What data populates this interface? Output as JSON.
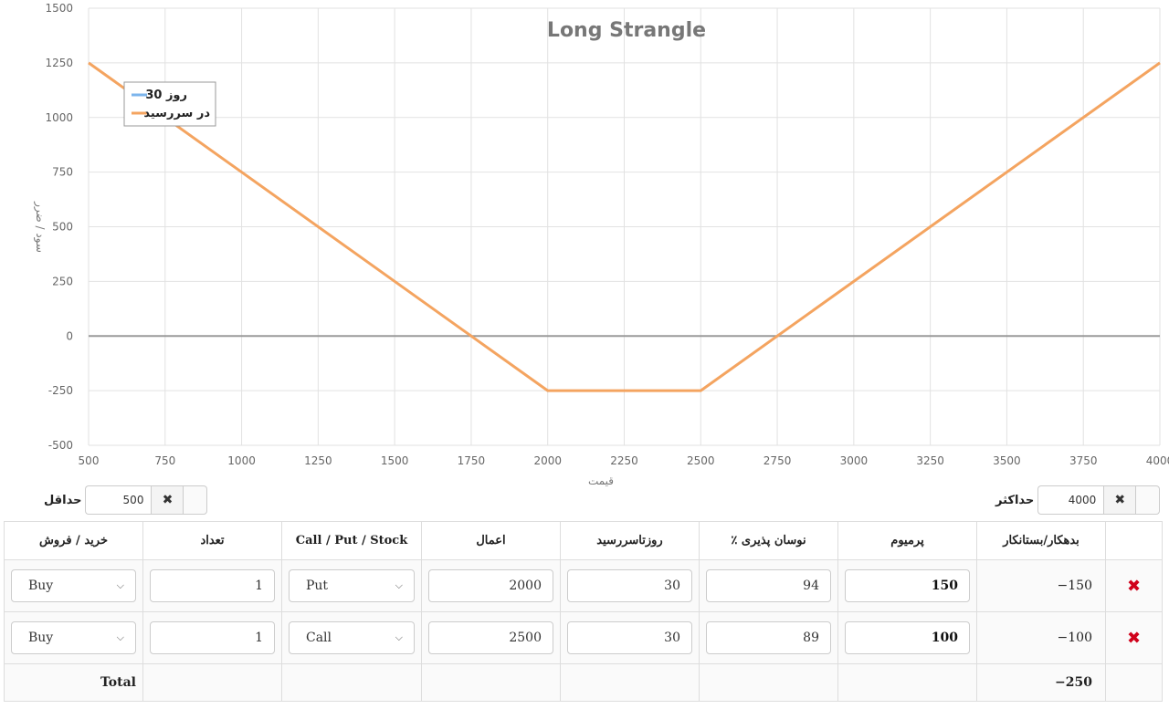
{
  "chart_data": {
    "type": "line",
    "title": "Long Strangle",
    "xlabel": "قیمت",
    "ylabel": "سود / ضرر",
    "xlim": [
      500,
      4000
    ],
    "ylim": [
      -500,
      1500
    ],
    "x_ticks": [
      500,
      750,
      1000,
      1250,
      1500,
      1750,
      2000,
      2250,
      2500,
      2750,
      3000,
      3250,
      3500,
      3750,
      4000
    ],
    "y_ticks": [
      -500,
      -250,
      0,
      250,
      500,
      750,
      1000,
      1250,
      1500
    ],
    "grid": true,
    "legend_position": "top-left",
    "series": [
      {
        "name": "روز 30",
        "color": "#7cb5ec",
        "points": []
      },
      {
        "name": "در سررسید",
        "color": "#f4a460",
        "points": [
          [
            500,
            1250
          ],
          [
            2000,
            -250
          ],
          [
            2500,
            -250
          ],
          [
            4000,
            1250
          ]
        ]
      }
    ]
  },
  "range": {
    "min_label": "حداقل",
    "min_value": "500",
    "max_label": "حداکثر",
    "max_value": "4000",
    "clear_icon": "✖"
  },
  "table": {
    "headers": {
      "buy_sell": "خرید / فروش",
      "quantity": "تعداد",
      "type": "Call / Put / Stock",
      "strike": "اعمال",
      "days": "روزتاسررسید",
      "volatility": "٪ نوسان پذیری",
      "premium": "پرمیوم",
      "debit_credit": "بدهکار/بستانکار"
    },
    "rows": [
      {
        "side": "Buy",
        "quantity": "1",
        "type": "Put",
        "strike": "2000",
        "days": "30",
        "volatility": "94",
        "premium": "150",
        "debit": "−150"
      },
      {
        "side": "Buy",
        "quantity": "1",
        "type": "Call",
        "strike": "2500",
        "days": "30",
        "volatility": "89",
        "premium": "100",
        "debit": "−100"
      }
    ],
    "delete_icon": "✖",
    "total_label": "Total",
    "total_value": "−250"
  }
}
